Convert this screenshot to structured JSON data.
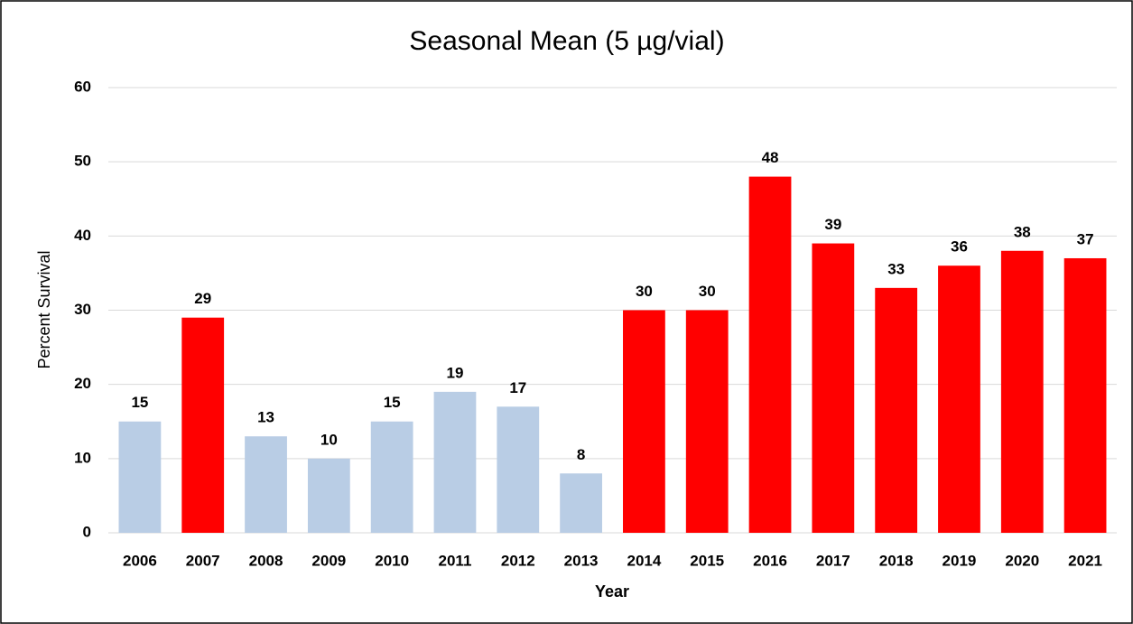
{
  "chart_data": {
    "type": "bar",
    "title": "Seasonal Mean (5 µg/vial)",
    "xlabel": "Year",
    "ylabel": "Percent Survival",
    "categories": [
      "2006",
      "2007",
      "2008",
      "2009",
      "2010",
      "2011",
      "2012",
      "2013",
      "2014",
      "2015",
      "2016",
      "2017",
      "2018",
      "2019",
      "2020",
      "2021"
    ],
    "values": [
      15,
      29,
      13,
      10,
      15,
      19,
      17,
      8,
      30,
      30,
      48,
      39,
      33,
      36,
      38,
      37
    ],
    "colors": [
      "#b9cde5",
      "#ff0000",
      "#b9cde5",
      "#b9cde5",
      "#b9cde5",
      "#b9cde5",
      "#b9cde5",
      "#b9cde5",
      "#ff0000",
      "#ff0000",
      "#ff0000",
      "#ff0000",
      "#ff0000",
      "#ff0000",
      "#ff0000",
      "#ff0000"
    ],
    "ylim": [
      0,
      60
    ],
    "yticks": [
      0,
      10,
      20,
      30,
      40,
      50,
      60
    ],
    "grid": true
  }
}
